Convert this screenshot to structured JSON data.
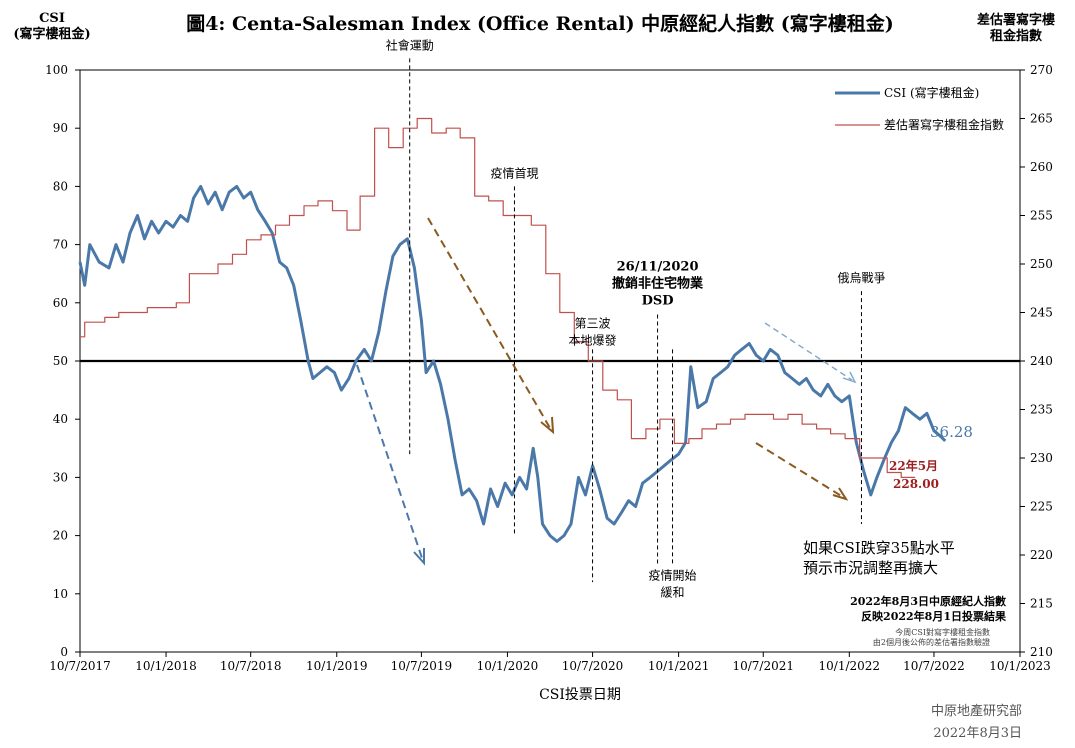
{
  "header": {
    "title": "圖4: Centa-Salesman Index (Office Rental)   中原經紀人指數 (寫字樓租金)",
    "left_axis_title_line1": "CSI",
    "left_axis_title_line2": "(寫字樓租金)",
    "right_axis_title_line1": "差估署寫字樓",
    "right_axis_title_line2": "租金指數"
  },
  "footer": {
    "xlabel": "CSI投票日期",
    "source": "中原地產研究部",
    "date": "2022年8月3日"
  },
  "chart_data": {
    "type": "line",
    "title": "圖4: Centa-Salesman Index (Office Rental)   中原經紀人指數 (寫字樓租金)",
    "xlabel": "CSI投票日期",
    "ylabel_left": "CSI (寫字樓租金)",
    "ylabel_right": "差估署寫字樓租金指數",
    "x_ticks": [
      "10/7/2017",
      "10/1/2018",
      "10/7/2018",
      "10/1/2019",
      "10/7/2019",
      "10/1/2020",
      "10/7/2020",
      "10/1/2021",
      "10/7/2021",
      "10/1/2022",
      "10/7/2022",
      "10/1/2023"
    ],
    "xlim": [
      "2017-07-10",
      "2023-01-10"
    ],
    "y_left": {
      "lim": [
        0,
        100
      ],
      "ticks": [
        0,
        10,
        20,
        30,
        40,
        50,
        60,
        70,
        80,
        90,
        100
      ]
    },
    "y_right": {
      "lim": [
        210,
        270
      ],
      "ticks": [
        210,
        215,
        220,
        225,
        230,
        235,
        240,
        245,
        250,
        255,
        260,
        265,
        270
      ]
    },
    "grid": false,
    "legend_position": "top-right",
    "reference_line_left": 50,
    "series": [
      {
        "name": "CSI (寫字樓租金)",
        "axis": "left",
        "color": "#4a78a9",
        "points": [
          [
            "2017-07-10",
            67
          ],
          [
            "2017-07-20",
            63
          ],
          [
            "2017-07-31",
            70
          ],
          [
            "2017-08-20",
            67
          ],
          [
            "2017-09-10",
            66
          ],
          [
            "2017-09-25",
            70
          ],
          [
            "2017-10-10",
            67
          ],
          [
            "2017-10-25",
            72
          ],
          [
            "2017-11-10",
            75
          ],
          [
            "2017-11-25",
            71
          ],
          [
            "2017-12-10",
            74
          ],
          [
            "2017-12-25",
            72
          ],
          [
            "2018-01-10",
            74
          ],
          [
            "2018-01-25",
            73
          ],
          [
            "2018-02-10",
            75
          ],
          [
            "2018-02-25",
            74
          ],
          [
            "2018-03-10",
            78
          ],
          [
            "2018-03-25",
            80
          ],
          [
            "2018-04-10",
            77
          ],
          [
            "2018-04-25",
            79
          ],
          [
            "2018-05-10",
            76
          ],
          [
            "2018-05-25",
            79
          ],
          [
            "2018-06-10",
            80
          ],
          [
            "2018-06-25",
            78
          ],
          [
            "2018-07-10",
            79
          ],
          [
            "2018-07-25",
            76
          ],
          [
            "2018-08-10",
            74
          ],
          [
            "2018-08-25",
            72
          ],
          [
            "2018-09-10",
            67
          ],
          [
            "2018-09-25",
            66
          ],
          [
            "2018-10-10",
            63
          ],
          [
            "2018-10-25",
            57
          ],
          [
            "2018-11-10",
            50
          ],
          [
            "2018-11-20",
            47
          ],
          [
            "2018-12-05",
            48
          ],
          [
            "2018-12-20",
            49
          ],
          [
            "2019-01-05",
            48
          ],
          [
            "2019-01-20",
            45
          ],
          [
            "2019-02-05",
            47
          ],
          [
            "2019-02-20",
            50
          ],
          [
            "2019-03-10",
            52
          ],
          [
            "2019-03-25",
            50
          ],
          [
            "2019-04-10",
            55
          ],
          [
            "2019-04-25",
            62
          ],
          [
            "2019-05-10",
            68
          ],
          [
            "2019-05-25",
            70
          ],
          [
            "2019-06-10",
            71
          ],
          [
            "2019-06-25",
            66
          ],
          [
            "2019-07-10",
            57
          ],
          [
            "2019-07-20",
            48
          ],
          [
            "2019-08-05",
            50
          ],
          [
            "2019-08-20",
            46
          ],
          [
            "2019-09-05",
            40
          ],
          [
            "2019-09-20",
            33
          ],
          [
            "2019-10-05",
            27
          ],
          [
            "2019-10-20",
            28
          ],
          [
            "2019-11-05",
            26
          ],
          [
            "2019-11-20",
            22
          ],
          [
            "2019-12-05",
            28
          ],
          [
            "2019-12-20",
            25
          ],
          [
            "2020-01-05",
            29
          ],
          [
            "2020-01-20",
            27
          ],
          [
            "2020-02-05",
            30
          ],
          [
            "2020-02-20",
            28
          ],
          [
            "2020-03-05",
            35
          ],
          [
            "2020-03-15",
            30
          ],
          [
            "2020-03-25",
            22
          ],
          [
            "2020-04-10",
            20
          ],
          [
            "2020-04-25",
            19
          ],
          [
            "2020-05-10",
            20
          ],
          [
            "2020-05-25",
            22
          ],
          [
            "2020-06-10",
            30
          ],
          [
            "2020-06-25",
            27
          ],
          [
            "2020-07-10",
            32
          ],
          [
            "2020-07-25",
            28
          ],
          [
            "2020-08-10",
            23
          ],
          [
            "2020-08-25",
            22
          ],
          [
            "2020-09-10",
            24
          ],
          [
            "2020-09-25",
            26
          ],
          [
            "2020-10-10",
            25
          ],
          [
            "2020-10-25",
            29
          ],
          [
            "2020-11-10",
            30
          ],
          [
            "2020-11-25",
            31
          ],
          [
            "2020-12-10",
            32
          ],
          [
            "2020-12-25",
            33
          ],
          [
            "2021-01-10",
            34
          ],
          [
            "2021-01-25",
            36
          ],
          [
            "2021-02-05",
            49
          ],
          [
            "2021-02-20",
            42
          ],
          [
            "2021-03-10",
            43
          ],
          [
            "2021-03-25",
            47
          ],
          [
            "2021-04-10",
            48
          ],
          [
            "2021-04-25",
            49
          ],
          [
            "2021-05-10",
            51
          ],
          [
            "2021-05-25",
            52
          ],
          [
            "2021-06-10",
            53
          ],
          [
            "2021-06-25",
            51
          ],
          [
            "2021-07-10",
            50
          ],
          [
            "2021-07-25",
            52
          ],
          [
            "2021-08-10",
            51
          ],
          [
            "2021-08-25",
            48
          ],
          [
            "2021-09-10",
            47
          ],
          [
            "2021-09-25",
            46
          ],
          [
            "2021-10-10",
            47
          ],
          [
            "2021-10-25",
            45
          ],
          [
            "2021-11-10",
            44
          ],
          [
            "2021-11-25",
            46
          ],
          [
            "2021-12-10",
            44
          ],
          [
            "2021-12-25",
            43
          ],
          [
            "2022-01-10",
            44
          ],
          [
            "2022-01-25",
            36
          ],
          [
            "2022-02-10",
            31
          ],
          [
            "2022-02-25",
            27
          ],
          [
            "2022-03-10",
            30
          ],
          [
            "2022-03-25",
            33
          ],
          [
            "2022-04-10",
            36
          ],
          [
            "2022-04-25",
            38
          ],
          [
            "2022-05-10",
            42
          ],
          [
            "2022-05-25",
            41
          ],
          [
            "2022-06-10",
            40
          ],
          [
            "2022-06-25",
            41
          ],
          [
            "2022-07-10",
            38
          ],
          [
            "2022-07-25",
            37
          ],
          [
            "2022-08-03",
            36.28
          ]
        ]
      },
      {
        "name": "差估署寫字樓租金指數",
        "axis": "right",
        "color": "#c0504d",
        "step": true,
        "points": [
          [
            "2017-07-10",
            242.5
          ],
          [
            "2017-07-20",
            244
          ],
          [
            "2017-09-01",
            244.5
          ],
          [
            "2017-10-01",
            245
          ],
          [
            "2017-12-01",
            245.5
          ],
          [
            "2018-02-01",
            246
          ],
          [
            "2018-03-01",
            249
          ],
          [
            "2018-05-01",
            250
          ],
          [
            "2018-06-01",
            251
          ],
          [
            "2018-07-01",
            252.5
          ],
          [
            "2018-08-01",
            253
          ],
          [
            "2018-09-01",
            254
          ],
          [
            "2018-10-01",
            255
          ],
          [
            "2018-11-01",
            256
          ],
          [
            "2018-12-01",
            256.5
          ],
          [
            "2019-01-01",
            255.5
          ],
          [
            "2019-02-01",
            253.5
          ],
          [
            "2019-03-01",
            257
          ],
          [
            "2019-04-01",
            264
          ],
          [
            "2019-05-01",
            262
          ],
          [
            "2019-06-01",
            264
          ],
          [
            "2019-07-01",
            265
          ],
          [
            "2019-08-01",
            263.5
          ],
          [
            "2019-09-01",
            264
          ],
          [
            "2019-10-01",
            263
          ],
          [
            "2019-11-01",
            257
          ],
          [
            "2019-12-01",
            256.5
          ],
          [
            "2020-01-01",
            255
          ],
          [
            "2020-03-01",
            254
          ],
          [
            "2020-04-01",
            249
          ],
          [
            "2020-05-01",
            245
          ],
          [
            "2020-06-01",
            242
          ],
          [
            "2020-07-01",
            240
          ],
          [
            "2020-08-01",
            237
          ],
          [
            "2020-09-01",
            236
          ],
          [
            "2020-10-01",
            232
          ],
          [
            "2020-11-01",
            233
          ],
          [
            "2020-12-01",
            234
          ],
          [
            "2021-01-01",
            231.5
          ],
          [
            "2021-02-01",
            232
          ],
          [
            "2021-03-01",
            233
          ],
          [
            "2021-04-01",
            233.5
          ],
          [
            "2021-05-01",
            234
          ],
          [
            "2021-06-01",
            234.5
          ],
          [
            "2021-08-01",
            234
          ],
          [
            "2021-09-01",
            234.5
          ],
          [
            "2021-10-01",
            233.5
          ],
          [
            "2021-11-01",
            233
          ],
          [
            "2021-12-01",
            232.5
          ],
          [
            "2022-01-01",
            232
          ],
          [
            "2022-02-01",
            230
          ],
          [
            "2022-04-01",
            228.5
          ],
          [
            "2022-05-01",
            228
          ]
        ]
      }
    ],
    "annotations": [
      {
        "id": "social",
        "text": "社會運動",
        "date": "2019-06-15",
        "top": 102,
        "bottom": 34
      },
      {
        "id": "pandemic",
        "text": "疫情首現",
        "date": "2020-01-25",
        "top": 80,
        "bottom": 20
      },
      {
        "id": "dsd",
        "text_lines": [
          "26/11/2020",
          "撤銷非住宅物業",
          "DSD"
        ],
        "date": "2020-11-26",
        "top": 58,
        "bottom": 15
      },
      {
        "id": "wave3",
        "text_lines": [
          "第三波",
          "本地爆發"
        ],
        "date": "2020-07-10",
        "top": 52,
        "bottom": 12
      },
      {
        "id": "ease",
        "text_lines": [
          "疫情開始",
          "緩和"
        ],
        "date": "2020-12-28",
        "top": 52,
        "bottom": 15
      },
      {
        "id": "war",
        "text": "俄烏戰爭",
        "date": "2022-02-05",
        "top": 62,
        "bottom": 22
      }
    ],
    "value_labels": [
      {
        "id": "csi_last",
        "text": "36.28",
        "color": "#4a78a9"
      },
      {
        "id": "dsd_last_1",
        "text": "22年5月",
        "color": "#9b1f1f"
      },
      {
        "id": "dsd_last_2",
        "text": "228.00",
        "color": "#9b1f1f"
      }
    ],
    "notes": [
      "如果CSI跌穿35點水平",
      "預示市況調整再擴大",
      "2022年8月3日中原經紀人指數",
      "反映2022年8月1日投票結果",
      "今周CSI對寫字樓租金指數",
      "由2個月後公佈的差估署指數驗證"
    ]
  }
}
